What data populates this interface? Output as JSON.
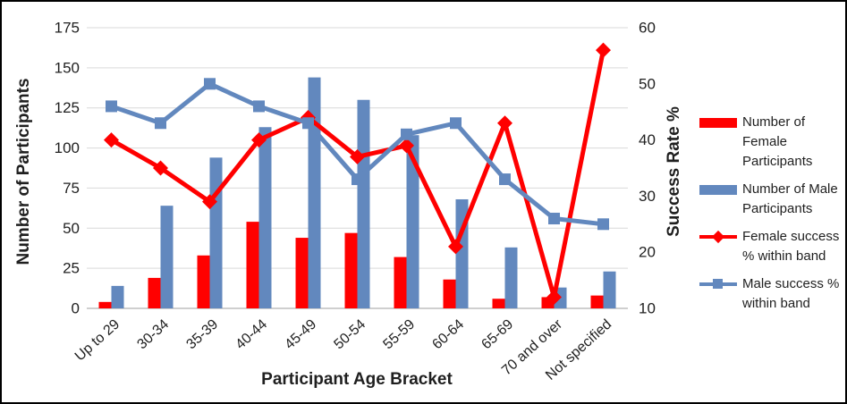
{
  "chart_data": {
    "type": "combo",
    "title": "",
    "categories": [
      "Up to 29",
      "30-34",
      "35-39",
      "40-44",
      "45-49",
      "50-54",
      "55-59",
      "60-64",
      "65-69",
      "70 and over",
      "Not specified"
    ],
    "series": [
      {
        "name": "Number of Female Participants",
        "type": "bar",
        "axis": "left",
        "color": "#ff0000",
        "marker": "none",
        "values": [
          4,
          19,
          33,
          54,
          44,
          47,
          32,
          18,
          6,
          7,
          8
        ]
      },
      {
        "name": "Number of Male Participants",
        "type": "bar",
        "axis": "left",
        "color": "#6288be",
        "marker": "none",
        "values": [
          14,
          64,
          94,
          113,
          144,
          130,
          108,
          68,
          38,
          13,
          23
        ]
      },
      {
        "name": "Female success % within band",
        "type": "line",
        "axis": "right",
        "color": "#ff0000",
        "marker": "diamond",
        "values": [
          40,
          35,
          29,
          40,
          44,
          37,
          39,
          21,
          43,
          12,
          56
        ]
      },
      {
        "name": "Male success % within band",
        "type": "line",
        "axis": "right",
        "color": "#6288be",
        "marker": "square",
        "values": [
          46,
          43,
          50,
          46,
          43,
          33,
          41,
          43,
          33,
          26,
          25
        ]
      }
    ],
    "left_axis": {
      "title": "Number of Participants",
      "min": 0,
      "max": 175,
      "step": 25,
      "ticks": [
        "0",
        "25",
        "50",
        "75",
        "100",
        "125",
        "150",
        "175"
      ]
    },
    "right_axis": {
      "title": "Success Rate %",
      "min": 10,
      "max": 60,
      "step": 10,
      "ticks": [
        "10",
        "20",
        "30",
        "40",
        "50",
        "60"
      ]
    },
    "x_axis": {
      "title": "Participant Age Bracket",
      "label_rotation_deg": -42
    },
    "grid": true,
    "legend_position": "right",
    "colors": {
      "gridline": "#d9d9d9",
      "axis_line": "#bfbfbf",
      "text": "#1f1f1f"
    }
  }
}
